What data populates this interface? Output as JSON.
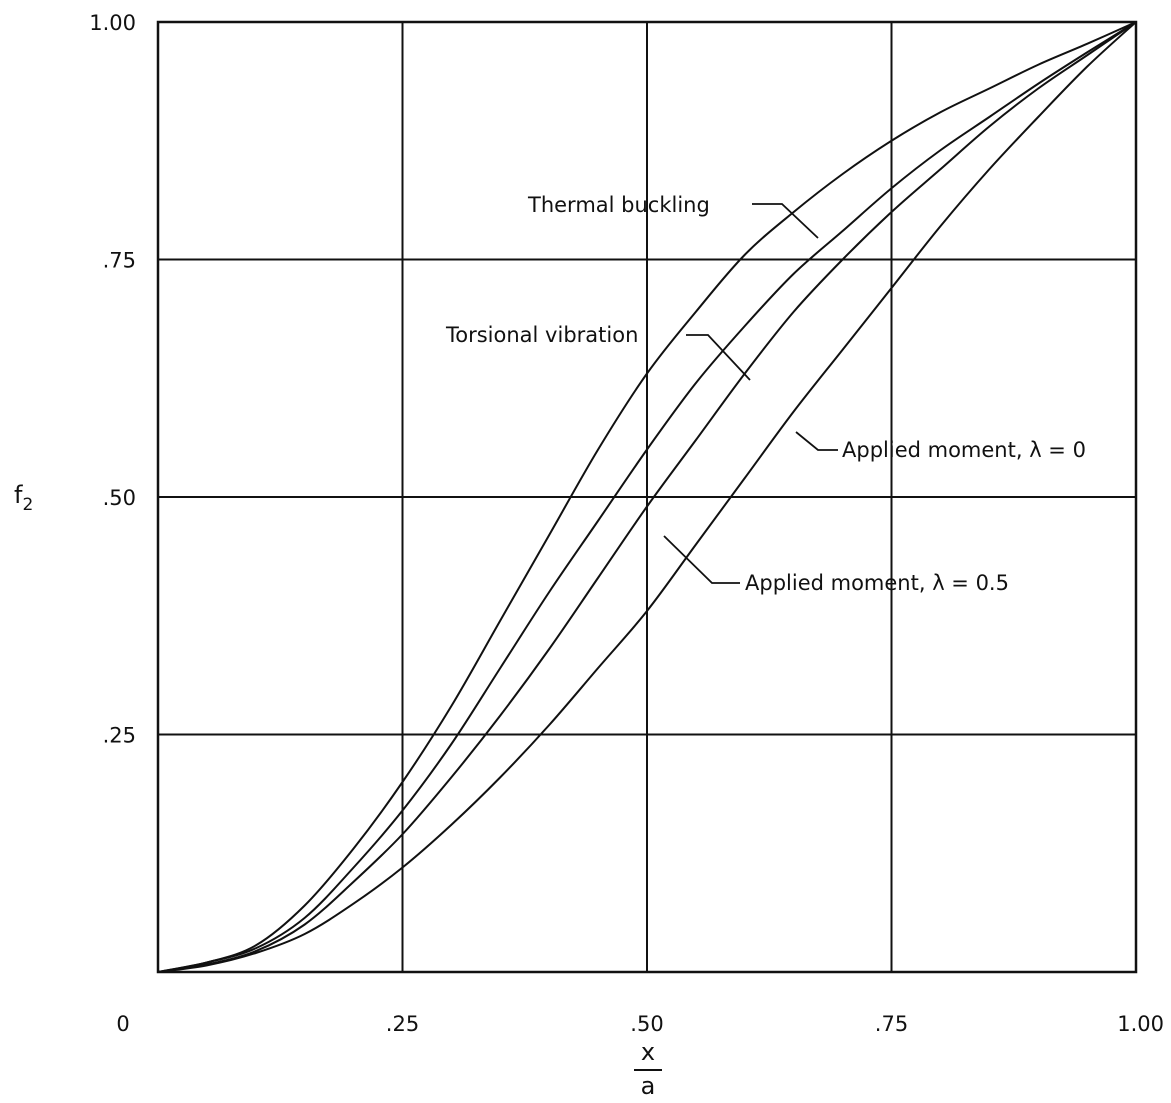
{
  "chart_data": {
    "type": "line",
    "title": "",
    "xlabel": {
      "numerator": "x",
      "denominator": "a"
    },
    "ylabel": {
      "base": "f",
      "subscript": "2"
    },
    "xlim": [
      0,
      1
    ],
    "ylim": [
      0,
      1
    ],
    "x_ticks": [
      {
        "value": 0,
        "label": "0"
      },
      {
        "value": 0.25,
        "label": ".25"
      },
      {
        "value": 0.5,
        "label": ".50"
      },
      {
        "value": 0.75,
        "label": ".75"
      },
      {
        "value": 1,
        "label": "1.00"
      }
    ],
    "y_ticks": [
      {
        "value": 0.25,
        "label": ".25"
      },
      {
        "value": 0.5,
        "label": ".50"
      },
      {
        "value": 0.75,
        "label": ".75"
      },
      {
        "value": 1,
        "label": "1.00"
      }
    ],
    "grid": true,
    "series": [
      {
        "name": "Thermal buckling",
        "x": [
          0,
          0.05,
          0.1,
          0.15,
          0.2,
          0.25,
          0.3,
          0.35,
          0.4,
          0.45,
          0.5,
          0.55,
          0.6,
          0.65,
          0.7,
          0.75,
          0.8,
          0.85,
          0.9,
          0.95,
          1.0
        ],
        "y": [
          0,
          0.01,
          0.028,
          0.07,
          0.13,
          0.2,
          0.28,
          0.37,
          0.46,
          0.55,
          0.63,
          0.695,
          0.755,
          0.8,
          0.84,
          0.875,
          0.905,
          0.93,
          0.955,
          0.977,
          1.0
        ]
      },
      {
        "name": "Torsional vibration",
        "x": [
          0,
          0.05,
          0.1,
          0.15,
          0.2,
          0.25,
          0.3,
          0.35,
          0.4,
          0.45,
          0.5,
          0.55,
          0.6,
          0.65,
          0.7,
          0.75,
          0.8,
          0.85,
          0.9,
          0.95,
          1.0
        ],
        "y": [
          0,
          0.01,
          0.025,
          0.057,
          0.11,
          0.17,
          0.24,
          0.32,
          0.4,
          0.475,
          0.55,
          0.62,
          0.68,
          0.735,
          0.78,
          0.825,
          0.865,
          0.9,
          0.935,
          0.968,
          1.0
        ]
      },
      {
        "name": "Applied moment, λ=0",
        "x": [
          0,
          0.05,
          0.1,
          0.15,
          0.2,
          0.25,
          0.3,
          0.35,
          0.4,
          0.45,
          0.5,
          0.55,
          0.6,
          0.65,
          0.7,
          0.75,
          0.8,
          0.85,
          0.9,
          0.95,
          1.0
        ],
        "y": [
          0,
          0.008,
          0.022,
          0.05,
          0.095,
          0.145,
          0.205,
          0.27,
          0.34,
          0.415,
          0.49,
          0.56,
          0.63,
          0.695,
          0.75,
          0.8,
          0.845,
          0.89,
          0.93,
          0.965,
          1.0
        ]
      },
      {
        "name": "Applied moment, λ=0.5",
        "x": [
          0,
          0.05,
          0.1,
          0.15,
          0.2,
          0.25,
          0.3,
          0.35,
          0.4,
          0.45,
          0.5,
          0.55,
          0.6,
          0.65,
          0.7,
          0.75,
          0.8,
          0.85,
          0.9,
          0.95,
          1.0
        ],
        "y": [
          0,
          0.007,
          0.02,
          0.04,
          0.072,
          0.11,
          0.155,
          0.205,
          0.26,
          0.32,
          0.38,
          0.45,
          0.52,
          0.59,
          0.655,
          0.72,
          0.785,
          0.845,
          0.9,
          0.953,
          1.0
        ]
      }
    ],
    "annotations": [
      {
        "text": "Thermal buckling",
        "series": "Thermal buckling"
      },
      {
        "text": "Torsional vibration",
        "series": "Torsional vibration"
      },
      {
        "text": "Applied moment, λ = 0",
        "series": "Applied moment, λ=0"
      },
      {
        "text": "Applied moment, λ = 0.5",
        "series": "Applied moment, λ=0.5"
      }
    ]
  }
}
